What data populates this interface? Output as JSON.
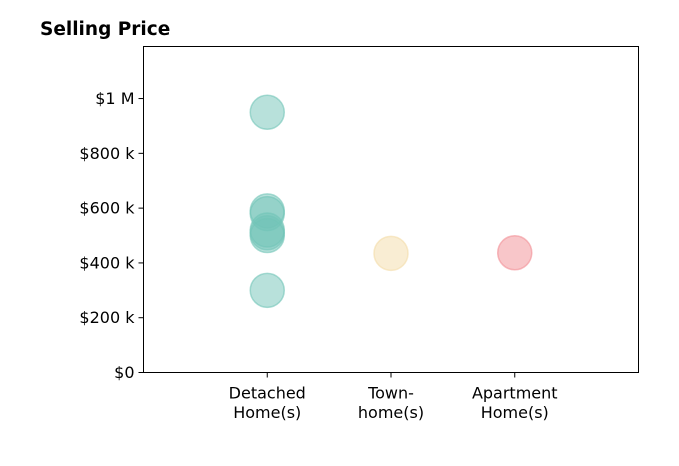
{
  "chart_data": {
    "type": "scatter",
    "title": "Selling Price",
    "xlabel": "",
    "ylabel": "",
    "categories": [
      [
        "Detached",
        "Home(s)"
      ],
      [
        "Town-",
        "home(s)"
      ],
      [
        "Apartment",
        "Home(s)"
      ]
    ],
    "y_ticks": [
      {
        "value": 0,
        "label": "$0"
      },
      {
        "value": 200000,
        "label": "$200 k"
      },
      {
        "value": 400000,
        "label": "$400 k"
      },
      {
        "value": 600000,
        "label": "$600 k"
      },
      {
        "value": 800000,
        "label": "$800 k"
      },
      {
        "value": 1000000,
        "label": "$1 M"
      }
    ],
    "ylim": [
      0,
      1190000
    ],
    "xlim": [
      -1,
      3
    ],
    "grid": false,
    "legend": "none",
    "series": [
      {
        "category": 0,
        "color": "#72c4b8",
        "values": [
          950000,
          590000,
          580000,
          520000,
          510000,
          500000,
          300000
        ]
      },
      {
        "category": 1,
        "color": "#f4dca8",
        "values": [
          435000
        ]
      },
      {
        "category": 2,
        "color": "#f18e94",
        "values": [
          437000
        ]
      }
    ]
  }
}
